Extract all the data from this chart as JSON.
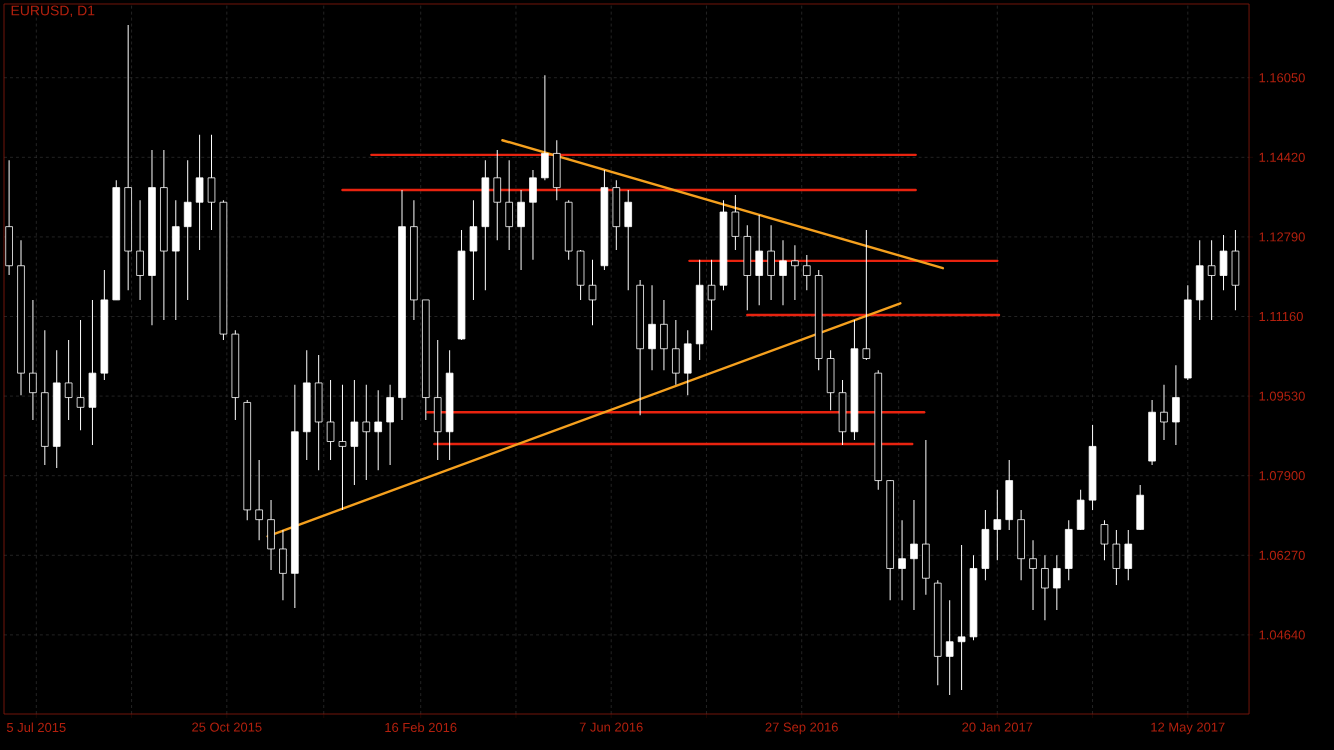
{
  "chart_data": {
    "type": "candlestick",
    "title": "EURUSD, D1",
    "color": "#ffffff",
    "grid": true,
    "xlim": [
      "2015-06-16",
      "2017-06-17"
    ],
    "xticks": [
      {
        "value": "2015-07-05",
        "label": "5 Jul 2015"
      },
      {
        "value": "2015-08-30",
        "label": null
      },
      {
        "value": "2015-10-25",
        "label": "25 Oct 2015"
      },
      {
        "value": "2015-12-21",
        "label": null
      },
      {
        "value": "2016-02-16",
        "label": "16 Feb 2016"
      },
      {
        "value": "2016-04-12",
        "label": null
      },
      {
        "value": "2016-06-07",
        "label": "7 Jun 2016"
      },
      {
        "value": "2016-08-02",
        "label": null
      },
      {
        "value": "2016-09-27",
        "label": "27 Sep 2016"
      },
      {
        "value": "2016-11-23",
        "label": null
      },
      {
        "value": "2017-01-20",
        "label": "20 Jan 2017"
      },
      {
        "value": "2017-03-17",
        "label": null
      },
      {
        "value": "2017-05-12",
        "label": "12 May 2017"
      }
    ],
    "ylim": [
      1.0302,
      1.1756
    ],
    "yticks": [
      {
        "value": 1.0464,
        "label": "1.04640"
      },
      {
        "value": 1.0627,
        "label": "1.06270"
      },
      {
        "value": 1.079,
        "label": "1.07900"
      },
      {
        "value": 1.0953,
        "label": "1.09530"
      },
      {
        "value": 1.1116,
        "label": "1.11160"
      },
      {
        "value": 1.1279,
        "label": "1.12790"
      },
      {
        "value": 1.1442,
        "label": "1.14420"
      },
      {
        "value": 1.1605,
        "label": "1.16050"
      }
    ],
    "x": [
      "2015-06-19",
      "2015-06-26",
      "2015-07-03",
      "2015-07-10",
      "2015-07-17",
      "2015-07-24",
      "2015-07-31",
      "2015-08-07",
      "2015-08-14",
      "2015-08-21",
      "2015-08-28",
      "2015-09-04",
      "2015-09-11",
      "2015-09-18",
      "2015-09-25",
      "2015-10-02",
      "2015-10-09",
      "2015-10-16",
      "2015-10-23",
      "2015-10-30",
      "2015-11-06",
      "2015-11-13",
      "2015-11-20",
      "2015-11-27",
      "2015-12-04",
      "2015-12-11",
      "2015-12-18",
      "2015-12-25",
      "2016-01-01",
      "2016-01-08",
      "2016-01-15",
      "2016-01-22",
      "2016-01-29",
      "2016-02-05",
      "2016-02-12",
      "2016-02-19",
      "2016-02-26",
      "2016-03-04",
      "2016-03-11",
      "2016-03-18",
      "2016-03-25",
      "2016-04-01",
      "2016-04-08",
      "2016-04-15",
      "2016-04-22",
      "2016-04-29",
      "2016-05-06",
      "2016-05-13",
      "2016-05-20",
      "2016-05-27",
      "2016-06-03",
      "2016-06-10",
      "2016-06-17",
      "2016-06-24",
      "2016-07-01",
      "2016-07-08",
      "2016-07-15",
      "2016-07-22",
      "2016-07-29",
      "2016-08-05",
      "2016-08-12",
      "2016-08-19",
      "2016-08-26",
      "2016-09-02",
      "2016-09-09",
      "2016-09-16",
      "2016-09-23",
      "2016-09-30",
      "2016-10-07",
      "2016-10-14",
      "2016-10-21",
      "2016-10-28",
      "2016-11-04",
      "2016-11-11",
      "2016-11-18",
      "2016-11-25",
      "2016-12-02",
      "2016-12-09",
      "2016-12-16",
      "2016-12-23",
      "2016-12-30",
      "2017-01-06",
      "2017-01-13",
      "2017-01-20",
      "2017-01-27",
      "2017-02-03",
      "2017-02-10",
      "2017-02-17",
      "2017-02-24",
      "2017-03-03",
      "2017-03-10",
      "2017-03-17",
      "2017-03-24",
      "2017-03-31",
      "2017-04-07",
      "2017-04-14",
      "2017-04-21",
      "2017-04-28",
      "2017-05-05",
      "2017-05-12",
      "2017-05-19",
      "2017-05-26",
      "2017-06-02",
      "2017-06-09"
    ],
    "ohlc": [
      [
        1.13,
        1.1436,
        1.1201,
        1.122
      ],
      [
        1.122,
        1.1272,
        1.0955,
        1.1
      ],
      [
        1.1,
        1.115,
        1.0904,
        1.096
      ],
      [
        1.096,
        1.1088,
        1.0812,
        1.085
      ],
      [
        1.085,
        1.1047,
        1.0806,
        1.098
      ],
      [
        1.098,
        1.1068,
        1.0904,
        1.095
      ],
      [
        1.095,
        1.1109,
        1.0883,
        1.093
      ],
      [
        1.093,
        1.115,
        1.0853,
        1.1
      ],
      [
        1.1,
        1.1211,
        1.0986,
        1.115
      ],
      [
        1.115,
        1.1395,
        1.115,
        1.138
      ],
      [
        1.138,
        1.1713,
        1.117,
        1.125
      ],
      [
        1.125,
        1.1354,
        1.115,
        1.12
      ],
      [
        1.12,
        1.1457,
        1.1098,
        1.138
      ],
      [
        1.138,
        1.1457,
        1.1109,
        1.125
      ],
      [
        1.125,
        1.1354,
        1.1109,
        1.13
      ],
      [
        1.13,
        1.1436,
        1.115,
        1.135
      ],
      [
        1.135,
        1.1488,
        1.1252,
        1.14
      ],
      [
        1.14,
        1.1488,
        1.1293,
        1.135
      ],
      [
        1.135,
        1.1354,
        1.1068,
        1.108
      ],
      [
        1.108,
        1.1088,
        1.0904,
        1.095
      ],
      [
        1.094,
        1.0945,
        1.0699,
        1.072
      ],
      [
        1.072,
        1.0822,
        1.0658,
        1.07
      ],
      [
        1.07,
        1.074,
        1.0597,
        1.064
      ],
      [
        1.064,
        1.0679,
        1.0535,
        1.059
      ],
      [
        1.059,
        1.0976,
        1.0519,
        1.088
      ],
      [
        1.088,
        1.1047,
        1.0822,
        1.098
      ],
      [
        1.098,
        1.1037,
        1.0801,
        1.09
      ],
      [
        1.09,
        1.0986,
        1.0822,
        1.086
      ],
      [
        1.086,
        1.0976,
        1.072,
        1.085
      ],
      [
        1.085,
        1.0986,
        1.0771,
        1.09
      ],
      [
        1.09,
        1.0976,
        1.0781,
        1.088
      ],
      [
        1.088,
        1.0965,
        1.0801,
        1.09
      ],
      [
        1.09,
        1.0976,
        1.0812,
        1.095
      ],
      [
        1.095,
        1.1375,
        1.0904,
        1.13
      ],
      [
        1.13,
        1.1354,
        1.1109,
        1.115
      ],
      [
        1.115,
        1.115,
        1.0904,
        1.095
      ],
      [
        1.095,
        1.1068,
        1.0822,
        1.088
      ],
      [
        1.088,
        1.1047,
        1.0822,
        1.1
      ],
      [
        1.107,
        1.1293,
        1.1068,
        1.125
      ],
      [
        1.125,
        1.1354,
        1.115,
        1.13
      ],
      [
        1.13,
        1.1436,
        1.117,
        1.14
      ],
      [
        1.14,
        1.1457,
        1.1272,
        1.135
      ],
      [
        1.135,
        1.1436,
        1.1252,
        1.13
      ],
      [
        1.13,
        1.1375,
        1.1211,
        1.135
      ],
      [
        1.135,
        1.1416,
        1.1232,
        1.14
      ],
      [
        1.14,
        1.161,
        1.1395,
        1.145
      ],
      [
        1.145,
        1.1477,
        1.1354,
        1.138
      ],
      [
        1.135,
        1.1354,
        1.1232,
        1.125
      ],
      [
        1.125,
        1.1252,
        1.115,
        1.118
      ],
      [
        1.118,
        1.1232,
        1.1098,
        1.115
      ],
      [
        1.122,
        1.1416,
        1.1211,
        1.138
      ],
      [
        1.138,
        1.1395,
        1.1252,
        1.13
      ],
      [
        1.13,
        1.1375,
        1.117,
        1.135
      ],
      [
        1.118,
        1.1191,
        1.0914,
        1.105
      ],
      [
        1.105,
        1.118,
        1.1006,
        1.11
      ],
      [
        1.11,
        1.115,
        1.1006,
        1.105
      ],
      [
        1.105,
        1.1109,
        1.0976,
        1.1
      ],
      [
        1.1,
        1.1088,
        1.0955,
        1.106
      ],
      [
        1.106,
        1.1232,
        1.1027,
        1.118
      ],
      [
        1.118,
        1.1232,
        1.1088,
        1.115
      ],
      [
        1.118,
        1.1354,
        1.117,
        1.133
      ],
      [
        1.133,
        1.1365,
        1.1252,
        1.128
      ],
      [
        1.128,
        1.1303,
        1.1129,
        1.12
      ],
      [
        1.12,
        1.1324,
        1.1139,
        1.125
      ],
      [
        1.125,
        1.1303,
        1.115,
        1.12
      ],
      [
        1.12,
        1.1272,
        1.1139,
        1.123
      ],
      [
        1.123,
        1.1262,
        1.115,
        1.122
      ],
      [
        1.122,
        1.1242,
        1.117,
        1.12
      ],
      [
        1.12,
        1.1211,
        1.1006,
        1.103
      ],
      [
        1.103,
        1.1047,
        1.0924,
        1.096
      ],
      [
        1.096,
        1.0986,
        1.0853,
        1.088
      ],
      [
        1.088,
        1.1109,
        1.0863,
        1.105
      ],
      [
        1.105,
        1.1293,
        1.1027,
        1.103
      ],
      [
        1.1,
        1.1006,
        1.0761,
        1.078
      ],
      [
        1.078,
        1.0781,
        1.0535,
        1.06
      ],
      [
        1.06,
        1.0699,
        1.0535,
        1.062
      ],
      [
        1.062,
        1.074,
        1.0515,
        1.065
      ],
      [
        1.065,
        1.0863,
        1.0546,
        1.058
      ],
      [
        1.057,
        1.0576,
        1.0361,
        1.042
      ],
      [
        1.042,
        1.0535,
        1.0341,
        1.045
      ],
      [
        1.045,
        1.0648,
        1.0351,
        1.046
      ],
      [
        1.046,
        1.0627,
        1.0453,
        1.06
      ],
      [
        1.06,
        1.072,
        1.0576,
        1.068
      ],
      [
        1.068,
        1.0761,
        1.0617,
        1.07
      ],
      [
        1.07,
        1.0822,
        1.0679,
        1.078
      ],
      [
        1.07,
        1.072,
        1.0576,
        1.062
      ],
      [
        1.062,
        1.0658,
        1.0515,
        1.06
      ],
      [
        1.06,
        1.0627,
        1.0494,
        1.056
      ],
      [
        1.056,
        1.0627,
        1.0515,
        1.06
      ],
      [
        1.06,
        1.0699,
        1.0576,
        1.068
      ],
      [
        1.068,
        1.0761,
        1.0679,
        1.074
      ],
      [
        1.074,
        1.0894,
        1.072,
        1.085
      ],
      [
        1.069,
        1.0699,
        1.0617,
        1.065
      ],
      [
        1.065,
        1.0679,
        1.0566,
        1.06
      ],
      [
        1.06,
        1.0679,
        1.0576,
        1.065
      ],
      [
        1.068,
        1.0771,
        1.0679,
        1.075
      ],
      [
        1.082,
        1.0945,
        1.0812,
        1.092
      ],
      [
        1.092,
        1.0976,
        1.0863,
        1.09
      ],
      [
        1.09,
        1.1016,
        1.0853,
        1.095
      ],
      [
        1.099,
        1.118,
        1.0986,
        1.115
      ],
      [
        1.115,
        1.1272,
        1.1109,
        1.122
      ],
      [
        1.122,
        1.1272,
        1.1109,
        1.12
      ],
      [
        1.12,
        1.1283,
        1.117,
        1.125
      ],
      [
        1.125,
        1.1293,
        1.1129,
        1.118
      ]
    ],
    "series": [
      {
        "type": "line",
        "color": "#e8230f",
        "x": [
          "2016-01-18",
          "2016-12-03"
        ],
        "values": [
          1.1447,
          1.1447
        ]
      },
      {
        "type": "line",
        "color": "#e8230f",
        "x": [
          "2016-01-01",
          "2016-12-03"
        ],
        "values": [
          1.1375,
          1.1375
        ]
      },
      {
        "type": "line",
        "color": "#e8230f",
        "x": [
          "2016-07-23",
          "2017-01-20"
        ],
        "values": [
          1.123,
          1.123
        ]
      },
      {
        "type": "line",
        "color": "#e8230f",
        "x": [
          "2016-08-26",
          "2017-01-21"
        ],
        "values": [
          1.1119,
          1.1119
        ]
      },
      {
        "type": "line",
        "color": "#e8230f",
        "x": [
          "2016-02-20",
          "2016-12-08"
        ],
        "values": [
          1.092,
          1.092
        ]
      },
      {
        "type": "line",
        "color": "#e8230f",
        "x": [
          "2016-02-24",
          "2016-12-01"
        ],
        "values": [
          1.0855,
          1.0855
        ]
      },
      {
        "type": "line",
        "color": "#f5a01e",
        "x": [
          "2015-11-18",
          "2016-11-24"
        ],
        "values": [
          1.0666,
          1.1143
        ]
      },
      {
        "type": "line",
        "color": "#f5a01e",
        "x": [
          "2016-04-04",
          "2016-12-19"
        ],
        "values": [
          1.1477,
          1.1215
        ]
      }
    ]
  }
}
